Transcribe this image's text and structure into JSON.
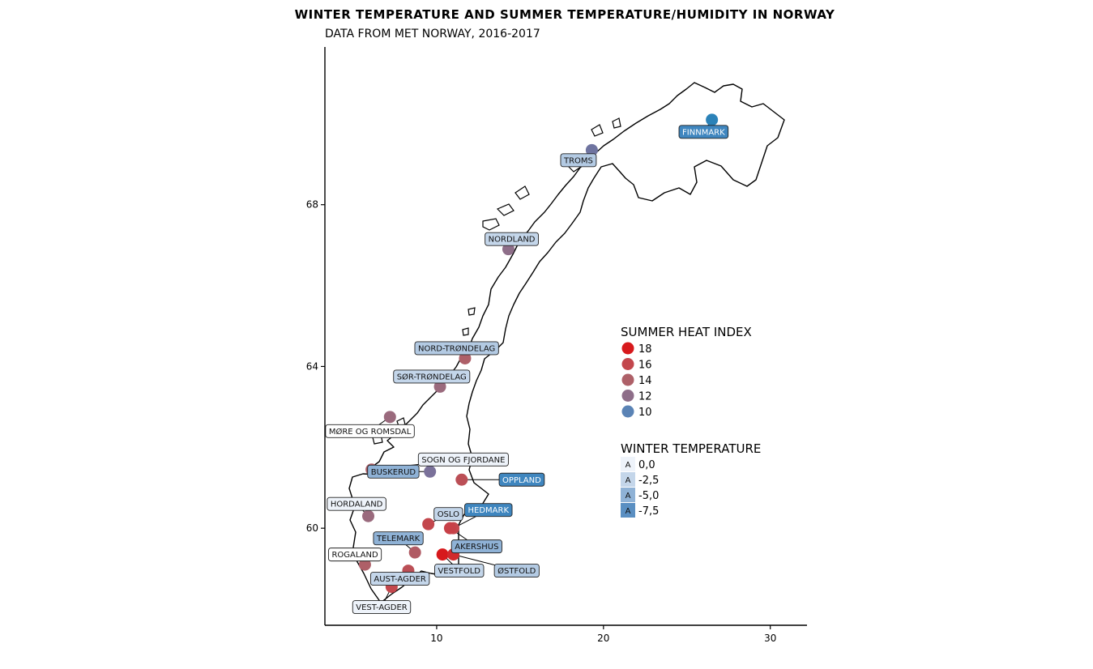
{
  "chart_data": {
    "type": "scatter",
    "title": "WINTER TEMPERATURE AND SUMMER TEMPERATURE/HUMIDITY IN NORWAY",
    "subtitle": "DATA FROM MET NORWAY, 2016-2017",
    "xlabel": "",
    "ylabel": "",
    "xlim": [
      3.3,
      32.2
    ],
    "ylim": [
      57.6,
      71.9
    ],
    "x_ticks": [
      10,
      20,
      30
    ],
    "y_ticks": [
      60,
      64,
      68
    ],
    "legend_position": "right",
    "heat_legend": {
      "title": "SUMMER HEAT INDEX",
      "entries": [
        {
          "label": "18",
          "color": "#d7191c"
        },
        {
          "label": "16",
          "color": "#c3474d"
        },
        {
          "label": "14",
          "color": "#ae6068"
        },
        {
          "label": "12",
          "color": "#8e6e89"
        },
        {
          "label": "10",
          "color": "#5a83b5"
        }
      ]
    },
    "winter_legend": {
      "title": "WINTER TEMPERATURE",
      "entries": [
        {
          "label": "0,0",
          "key": "A",
          "color": "#eef3fa"
        },
        {
          "label": "-2,5",
          "key": "A",
          "color": "#c4d6ea"
        },
        {
          "label": "-5,0",
          "key": "A",
          "color": "#8fb2d6"
        },
        {
          "label": "-7,5",
          "key": "A",
          "color": "#5a8fc2"
        }
      ]
    },
    "points": [
      {
        "name": "FINNMARK",
        "lon": 26.5,
        "lat": 70.1,
        "heat_color": "#2b82b8",
        "winter_color": "#3f86bf",
        "label_lon": 26.0,
        "label_lat": 69.8
      },
      {
        "name": "TROMS",
        "lon": 19.3,
        "lat": 69.35,
        "heat_color": "#6f74a0",
        "winter_color": "#b3cae3",
        "label_lon": 18.5,
        "label_lat": 69.1
      },
      {
        "name": "NORDLAND",
        "lon": 14.3,
        "lat": 66.9,
        "heat_color": "#8e6e89",
        "winter_color": "#c4d6ea",
        "label_lon": 14.5,
        "label_lat": 67.15
      },
      {
        "name": "NORD-TRØNDELAG",
        "lon": 11.7,
        "lat": 64.2,
        "heat_color": "#ae6068",
        "winter_color": "#b3cae3",
        "label_lon": 11.2,
        "label_lat": 64.45
      },
      {
        "name": "SØR-TRØNDELAG",
        "lon": 10.2,
        "lat": 63.5,
        "heat_color": "#9a6a7d",
        "winter_color": "#c4d6ea",
        "label_lon": 9.7,
        "label_lat": 63.75
      },
      {
        "name": "MØRE OG ROMSDAL",
        "lon": 7.2,
        "lat": 62.75,
        "heat_color": "#9a6a7d",
        "winter_color": "#ffffff",
        "label_lon": 6.0,
        "label_lat": 62.4
      },
      {
        "name": "SOGN OG FJORDANE",
        "lon": 6.1,
        "lat": 61.45,
        "heat_color": "#ae6068",
        "winter_color": "#eef3fa",
        "label_lon": 11.6,
        "label_lat": 61.7
      },
      {
        "name": "BUSKERUD",
        "lon": 9.6,
        "lat": 61.4,
        "heat_color": "#7a719a",
        "winter_color": "#8fb2d6",
        "label_lon": 7.4,
        "label_lat": 61.4
      },
      {
        "name": "OPPLAND",
        "lon": 11.5,
        "lat": 61.2,
        "heat_color": "#bb4f56",
        "winter_color": "#3f86bf",
        "label_lon": 15.1,
        "label_lat": 61.2
      },
      {
        "name": "HORDALAND",
        "lon": 5.9,
        "lat": 60.3,
        "heat_color": "#9a6a7d",
        "winter_color": "#eef3fa",
        "label_lon": 5.2,
        "label_lat": 60.6
      },
      {
        "name": "HEDMARK",
        "lon": 11.0,
        "lat": 60.0,
        "heat_color": "#c3474d",
        "winter_color": "#3f86bf",
        "label_lon": 13.1,
        "label_lat": 60.45
      },
      {
        "name": "OSLO",
        "lon": 9.5,
        "lat": 60.1,
        "heat_color": "#c3474d",
        "winter_color": "#c4d6ea",
        "label_lon": 10.7,
        "label_lat": 60.35
      },
      {
        "name": "TELEMARK",
        "lon": 8.7,
        "lat": 59.4,
        "heat_color": "#b05a63",
        "winter_color": "#8fb2d6",
        "label_lon": 7.7,
        "label_lat": 59.75
      },
      {
        "name": "AKERSHUS",
        "lon": 10.8,
        "lat": 60.0,
        "heat_color": "#c74047",
        "winter_color": "#8fb2d6",
        "label_lon": 12.4,
        "label_lat": 59.55
      },
      {
        "name": "ROGALAND",
        "lon": 5.7,
        "lat": 59.1,
        "heat_color": "#ae6068",
        "winter_color": "#ffffff",
        "label_lon": 5.1,
        "label_lat": 59.35
      },
      {
        "name": "VESTFOLD",
        "lon": 10.35,
        "lat": 59.35,
        "heat_color": "#d7191c",
        "winter_color": "#c4d6ea",
        "label_lon": 11.35,
        "label_lat": 58.95
      },
      {
        "name": "ØSTFOLD",
        "lon": 11.0,
        "lat": 59.35,
        "heat_color": "#d12a2d",
        "winter_color": "#b3cae3",
        "label_lon": 14.8,
        "label_lat": 58.95
      },
      {
        "name": "AUST-AGDER",
        "lon": 8.3,
        "lat": 58.95,
        "heat_color": "#bb4f56",
        "winter_color": "#c4d6ea",
        "label_lon": 7.8,
        "label_lat": 58.75
      },
      {
        "name": "VEST-AGDER",
        "lon": 7.3,
        "lat": 58.55,
        "heat_color": "#c3474d",
        "winter_color": "#eef3fa",
        "label_lon": 6.7,
        "label_lat": 58.05
      }
    ]
  }
}
